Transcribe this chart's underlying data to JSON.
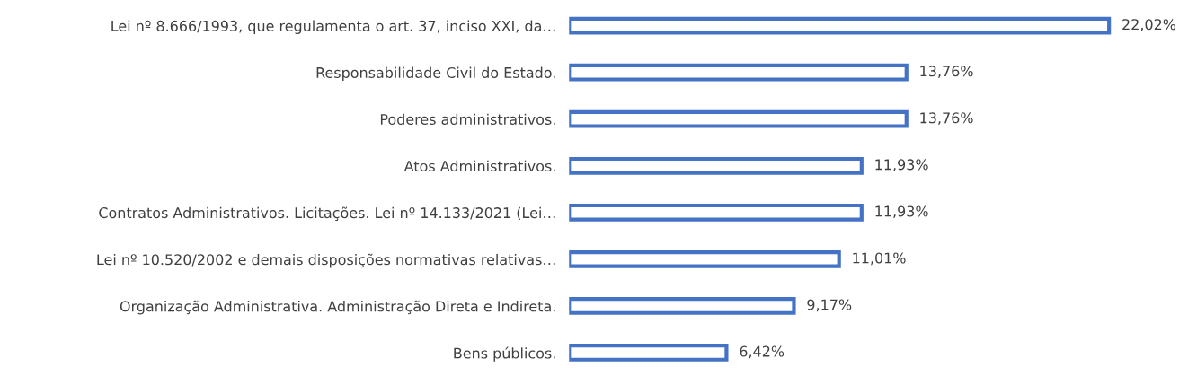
{
  "chart_data": {
    "type": "bar",
    "orientation": "horizontal",
    "categories": [
      "Lei nº 8.666/1993, que regulamenta o art. 37, inciso XXI, da…",
      "Responsabilidade Civil do Estado.",
      "Poderes administrativos.",
      "Atos Administrativos.",
      "Contratos Administrativos. Licitações. Lei nº 14.133/2021 (Lei…",
      "Lei nº 10.520/2002 e demais disposições normativas relativas…",
      "Organização Administrativa. Administração Direta e Indireta.",
      "Bens públicos."
    ],
    "values": [
      22.02,
      13.76,
      13.76,
      11.93,
      11.93,
      11.01,
      9.17,
      6.42
    ],
    "value_labels": [
      "22,02%",
      "13,76%",
      "13,76%",
      "11,93%",
      "11,93%",
      "11,01%",
      "9,17%",
      "6,42%"
    ],
    "color": "#4472c4",
    "grid": false,
    "legend": false
  }
}
